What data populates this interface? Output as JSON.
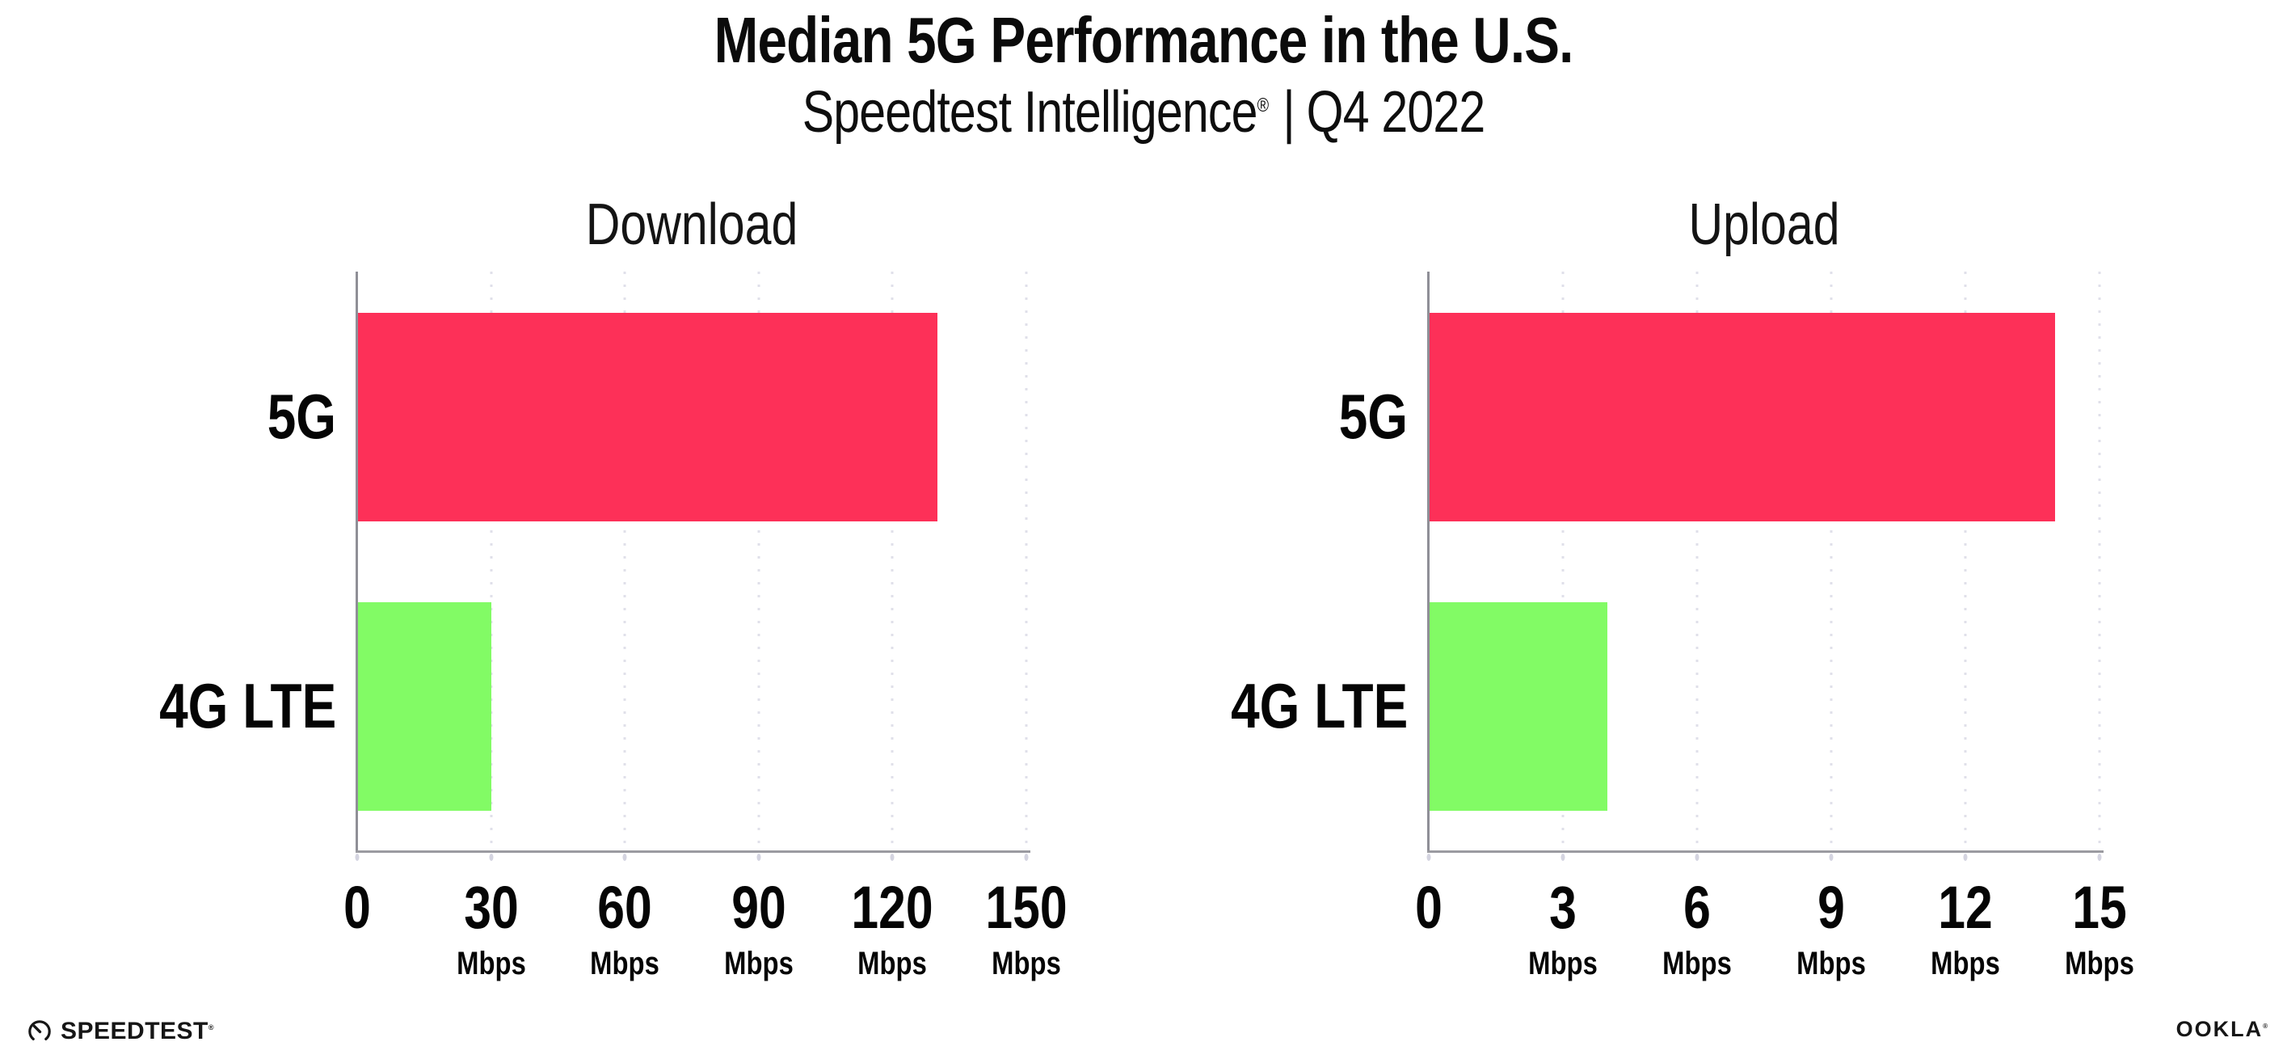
{
  "header": {
    "title": "Median 5G Performance in the U.S.",
    "subtitle_brand": "Speedtest Intelligence",
    "subtitle_reg": "®",
    "subtitle_sep": "|",
    "subtitle_period": "Q4 2022"
  },
  "chart_data": [
    {
      "type": "bar",
      "orientation": "horizontal",
      "title": "Download",
      "categories": [
        "5G",
        "4G LTE"
      ],
      "values": [
        130,
        30
      ],
      "unit": "Mbps",
      "xlim": [
        0,
        150
      ],
      "xticks": [
        0,
        30,
        60,
        90,
        120,
        150
      ],
      "bar_colors": [
        "#fd3058",
        "#82fb65"
      ],
      "grid": "vertical-dotted",
      "legend_position": "none",
      "unit_shown_on_zero_tick": false
    },
    {
      "type": "bar",
      "orientation": "horizontal",
      "title": "Upload",
      "categories": [
        "5G",
        "4G LTE"
      ],
      "values": [
        14,
        4
      ],
      "unit": "Mbps",
      "xlim": [
        0,
        15
      ],
      "xticks": [
        0,
        3,
        6,
        9,
        12,
        15
      ],
      "bar_colors": [
        "#fd3058",
        "#82fb65"
      ],
      "grid": "vertical-dotted",
      "legend_position": "none",
      "unit_shown_on_zero_tick": false
    }
  ],
  "colors": {
    "bar_5g": "#fd3058",
    "bar_4g_lte": "#82fb65",
    "x_axis_line": "#9b9ba1",
    "y_axis_line": "#8f8f97",
    "gridline": "#e0e0ea",
    "text": "#0b0b0b",
    "background": "#ffffff"
  },
  "footer": {
    "speedtest_label": "SPEEDTEST",
    "speedtest_mark": "®",
    "ookla_label": "OOKLA",
    "ookla_mark": "®"
  }
}
